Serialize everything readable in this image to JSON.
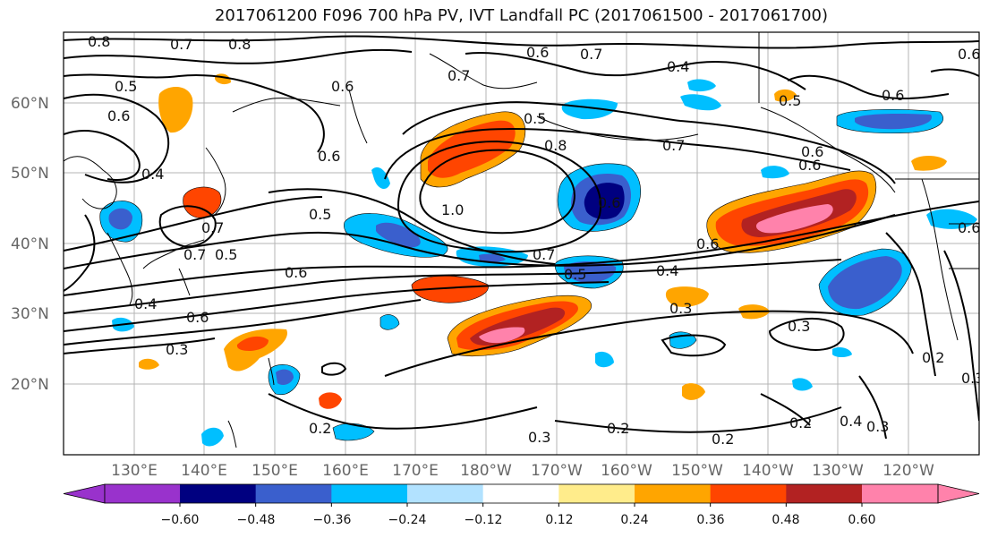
{
  "title": "2017061200 F096 700 hPa PV, IVT Landfall PC (2017061500 - 2017061700)",
  "lat_labels": [
    "60°N",
    "50°N",
    "40°N",
    "30°N",
    "20°N"
  ],
  "lon_labels": [
    "130°E",
    "140°E",
    "150°E",
    "160°E",
    "170°E",
    "180°W",
    "170°W",
    "160°W",
    "150°W",
    "140°W",
    "130°W",
    "120°W"
  ],
  "colorbar": {
    "ticks": [
      "−0.60",
      "−0.48",
      "−0.36",
      "−0.24",
      "−0.12",
      "0.12",
      "0.24",
      "0.36",
      "0.48",
      "0.60"
    ],
    "colors": [
      "#9932cc",
      "#000080",
      "#3a5fcd",
      "#00bfff",
      "#b2e2ff",
      "#ffffff",
      "#ffec8b",
      "#ffa500",
      "#ff4500",
      "#b22222",
      "#ff82ab"
    ]
  },
  "contour_labels": [
    "0.8",
    "0.7",
    "0.8",
    "0.6",
    "0.7",
    "0.7",
    "0.6",
    "0.4",
    "0.5",
    "0.6",
    "0.6",
    "0.5",
    "0.6",
    "0.5",
    "0.8",
    "0.7",
    "0.6",
    "0.4",
    "0.6",
    "1.0",
    "0.6",
    "0.5",
    "0.7",
    "0.5",
    "0.7",
    "0.6",
    "0.6",
    "0.4",
    "0.3",
    "0.4",
    "0.6",
    "0.3",
    "0.3",
    "0.2",
    "0.2",
    "0.3",
    "0.2",
    "0.2",
    "0.4",
    "0.3",
    "0.2",
    "0.3",
    "0.6",
    "0.5",
    "0.7",
    "0.6"
  ]
}
